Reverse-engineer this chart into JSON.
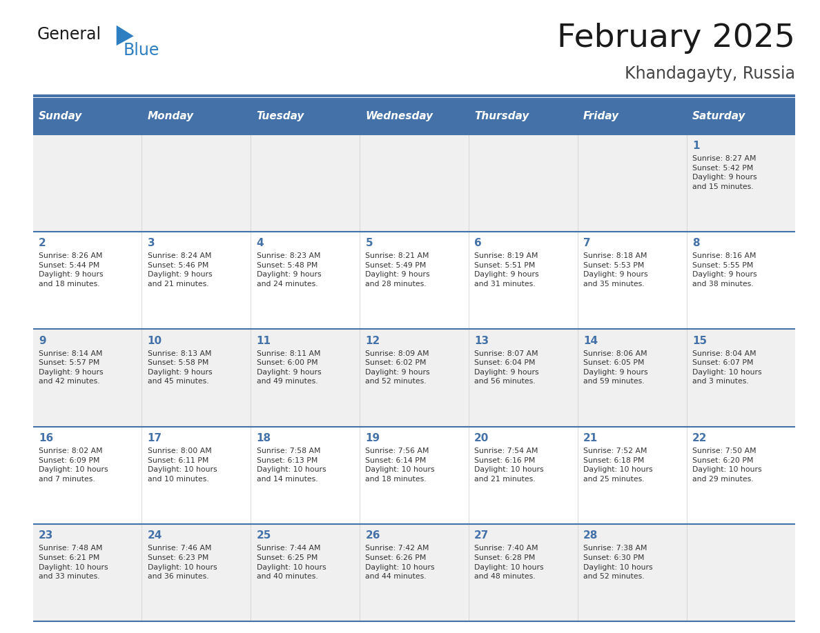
{
  "title": "February 2025",
  "subtitle": "Khandagayty, Russia",
  "days_of_week": [
    "Sunday",
    "Monday",
    "Tuesday",
    "Wednesday",
    "Thursday",
    "Friday",
    "Saturday"
  ],
  "header_bg": "#4472a8",
  "header_text": "#ffffff",
  "row_bg_odd": "#f0f0f0",
  "row_bg_even": "#ffffff",
  "day_number_color": "#4472a8",
  "cell_text_color": "#333333",
  "title_color": "#1a1a1a",
  "subtitle_color": "#444444",
  "logo_general_color": "#1a1a1a",
  "logo_blue_color": "#2e7fc1",
  "separator_color": "#4472a8",
  "weeks": [
    [
      {
        "day": null,
        "info": null
      },
      {
        "day": null,
        "info": null
      },
      {
        "day": null,
        "info": null
      },
      {
        "day": null,
        "info": null
      },
      {
        "day": null,
        "info": null
      },
      {
        "day": null,
        "info": null
      },
      {
        "day": 1,
        "info": "Sunrise: 8:27 AM\nSunset: 5:42 PM\nDaylight: 9 hours\nand 15 minutes."
      }
    ],
    [
      {
        "day": 2,
        "info": "Sunrise: 8:26 AM\nSunset: 5:44 PM\nDaylight: 9 hours\nand 18 minutes."
      },
      {
        "day": 3,
        "info": "Sunrise: 8:24 AM\nSunset: 5:46 PM\nDaylight: 9 hours\nand 21 minutes."
      },
      {
        "day": 4,
        "info": "Sunrise: 8:23 AM\nSunset: 5:48 PM\nDaylight: 9 hours\nand 24 minutes."
      },
      {
        "day": 5,
        "info": "Sunrise: 8:21 AM\nSunset: 5:49 PM\nDaylight: 9 hours\nand 28 minutes."
      },
      {
        "day": 6,
        "info": "Sunrise: 8:19 AM\nSunset: 5:51 PM\nDaylight: 9 hours\nand 31 minutes."
      },
      {
        "day": 7,
        "info": "Sunrise: 8:18 AM\nSunset: 5:53 PM\nDaylight: 9 hours\nand 35 minutes."
      },
      {
        "day": 8,
        "info": "Sunrise: 8:16 AM\nSunset: 5:55 PM\nDaylight: 9 hours\nand 38 minutes."
      }
    ],
    [
      {
        "day": 9,
        "info": "Sunrise: 8:14 AM\nSunset: 5:57 PM\nDaylight: 9 hours\nand 42 minutes."
      },
      {
        "day": 10,
        "info": "Sunrise: 8:13 AM\nSunset: 5:58 PM\nDaylight: 9 hours\nand 45 minutes."
      },
      {
        "day": 11,
        "info": "Sunrise: 8:11 AM\nSunset: 6:00 PM\nDaylight: 9 hours\nand 49 minutes."
      },
      {
        "day": 12,
        "info": "Sunrise: 8:09 AM\nSunset: 6:02 PM\nDaylight: 9 hours\nand 52 minutes."
      },
      {
        "day": 13,
        "info": "Sunrise: 8:07 AM\nSunset: 6:04 PM\nDaylight: 9 hours\nand 56 minutes."
      },
      {
        "day": 14,
        "info": "Sunrise: 8:06 AM\nSunset: 6:05 PM\nDaylight: 9 hours\nand 59 minutes."
      },
      {
        "day": 15,
        "info": "Sunrise: 8:04 AM\nSunset: 6:07 PM\nDaylight: 10 hours\nand 3 minutes."
      }
    ],
    [
      {
        "day": 16,
        "info": "Sunrise: 8:02 AM\nSunset: 6:09 PM\nDaylight: 10 hours\nand 7 minutes."
      },
      {
        "day": 17,
        "info": "Sunrise: 8:00 AM\nSunset: 6:11 PM\nDaylight: 10 hours\nand 10 minutes."
      },
      {
        "day": 18,
        "info": "Sunrise: 7:58 AM\nSunset: 6:13 PM\nDaylight: 10 hours\nand 14 minutes."
      },
      {
        "day": 19,
        "info": "Sunrise: 7:56 AM\nSunset: 6:14 PM\nDaylight: 10 hours\nand 18 minutes."
      },
      {
        "day": 20,
        "info": "Sunrise: 7:54 AM\nSunset: 6:16 PM\nDaylight: 10 hours\nand 21 minutes."
      },
      {
        "day": 21,
        "info": "Sunrise: 7:52 AM\nSunset: 6:18 PM\nDaylight: 10 hours\nand 25 minutes."
      },
      {
        "day": 22,
        "info": "Sunrise: 7:50 AM\nSunset: 6:20 PM\nDaylight: 10 hours\nand 29 minutes."
      }
    ],
    [
      {
        "day": 23,
        "info": "Sunrise: 7:48 AM\nSunset: 6:21 PM\nDaylight: 10 hours\nand 33 minutes."
      },
      {
        "day": 24,
        "info": "Sunrise: 7:46 AM\nSunset: 6:23 PM\nDaylight: 10 hours\nand 36 minutes."
      },
      {
        "day": 25,
        "info": "Sunrise: 7:44 AM\nSunset: 6:25 PM\nDaylight: 10 hours\nand 40 minutes."
      },
      {
        "day": 26,
        "info": "Sunrise: 7:42 AM\nSunset: 6:26 PM\nDaylight: 10 hours\nand 44 minutes."
      },
      {
        "day": 27,
        "info": "Sunrise: 7:40 AM\nSunset: 6:28 PM\nDaylight: 10 hours\nand 48 minutes."
      },
      {
        "day": 28,
        "info": "Sunrise: 7:38 AM\nSunset: 6:30 PM\nDaylight: 10 hours\nand 52 minutes."
      },
      {
        "day": null,
        "info": null
      }
    ]
  ]
}
